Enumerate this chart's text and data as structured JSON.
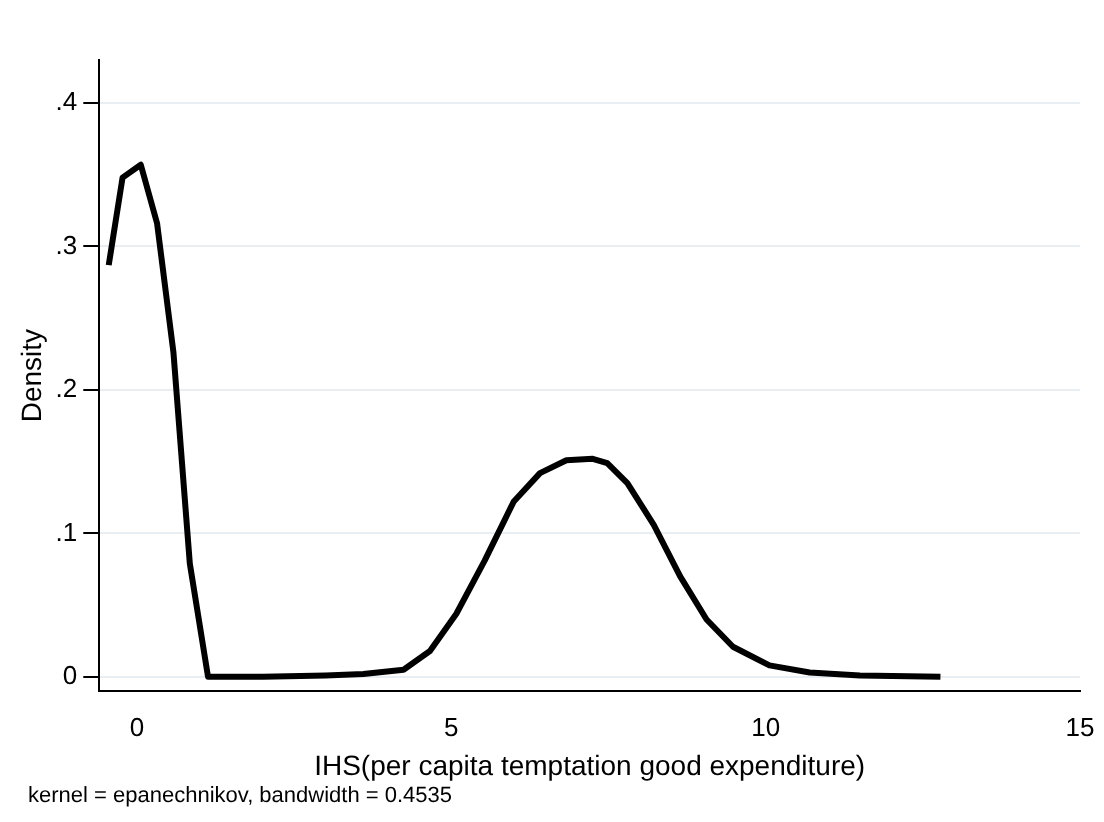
{
  "chart_data": {
    "type": "line",
    "xlabel": "IHS(per capita temptation good expenditure)",
    "ylabel": "Density",
    "x": [
      -0.45,
      -0.23,
      0.06,
      0.32,
      0.58,
      0.84,
      1.13,
      2.0,
      3.0,
      3.6,
      4.24,
      4.66,
      5.08,
      5.53,
      5.99,
      6.41,
      6.83,
      7.25,
      7.48,
      7.8,
      8.22,
      8.64,
      9.06,
      9.48,
      10.06,
      10.7,
      11.5,
      12.78
    ],
    "series": [
      {
        "color": "#000000",
        "values": [
          0.287,
          0.348,
          0.357,
          0.316,
          0.226,
          0.079,
          0,
          0,
          0.001,
          0.002,
          0.005,
          0.018,
          0.044,
          0.081,
          0.122,
          0.142,
          0.151,
          0.152,
          0.149,
          0.135,
          0.106,
          0.07,
          0.04,
          0.021,
          0.008,
          0.003,
          0.001,
          0
        ]
      }
    ],
    "xlim": [
      -0.6,
      15
    ],
    "xticks": [
      0,
      5,
      10,
      15
    ],
    "ylim": [
      -0.01,
      0.43
    ],
    "yticks": [
      0,
      {
        "value": 0.1,
        "label": ".1"
      },
      {
        "value": 0.2,
        "label": ".2"
      },
      {
        "value": 0.3,
        "label": ".3"
      },
      {
        "value": 0.4,
        "label": ".4"
      }
    ],
    "grid": "y",
    "legend": false,
    "marker": "none",
    "line_style": "solid",
    "annotations": [
      "kernel = epanechnikov, bandwidth = 0.4535"
    ]
  }
}
